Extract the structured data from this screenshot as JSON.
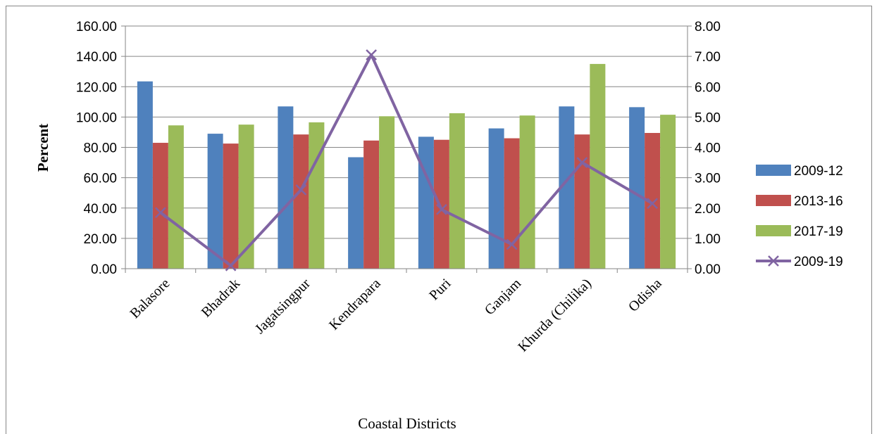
{
  "chart_data": {
    "type": "bar",
    "title": "",
    "xlabel": "Coastal Districts",
    "ylabel": "Percent",
    "ylim": [
      0,
      160
    ],
    "y2lim": [
      0,
      8
    ],
    "yticks": [
      "0.00",
      "20.00",
      "40.00",
      "60.00",
      "80.00",
      "100.00",
      "120.00",
      "140.00",
      "160.00"
    ],
    "y2ticks": [
      "0.00",
      "1.00",
      "2.00",
      "3.00",
      "4.00",
      "5.00",
      "6.00",
      "7.00",
      "8.00"
    ],
    "categories": [
      "Balasore",
      "Bhadrak",
      "Jagatsingpur",
      "Kendrapara",
      "Puri",
      "Ganjam",
      "Khurda (Chilika)",
      "Odisha"
    ],
    "series": [
      {
        "name": "2009-12",
        "type": "bar",
        "axis": "left",
        "color": "#4f81bd",
        "values": [
          123.5,
          89,
          107,
          73.5,
          87,
          92.5,
          107,
          106.5
        ]
      },
      {
        "name": "2013-16",
        "type": "bar",
        "axis": "left",
        "color": "#c0504d",
        "values": [
          83,
          82.5,
          88.5,
          84.5,
          85,
          86,
          88.5,
          89.5
        ]
      },
      {
        "name": "2017-19",
        "type": "bar",
        "axis": "left",
        "color": "#9bbb59",
        "values": [
          94.5,
          95,
          96.5,
          100.5,
          102.5,
          101,
          135,
          101.5
        ]
      },
      {
        "name": "2009-19",
        "type": "line",
        "axis": "right",
        "color": "#8064a2",
        "marker": "x",
        "values": [
          1.85,
          0.1,
          2.6,
          7.05,
          1.95,
          0.8,
          3.5,
          2.15
        ]
      }
    ],
    "grid": true,
    "legend_position": "right"
  }
}
